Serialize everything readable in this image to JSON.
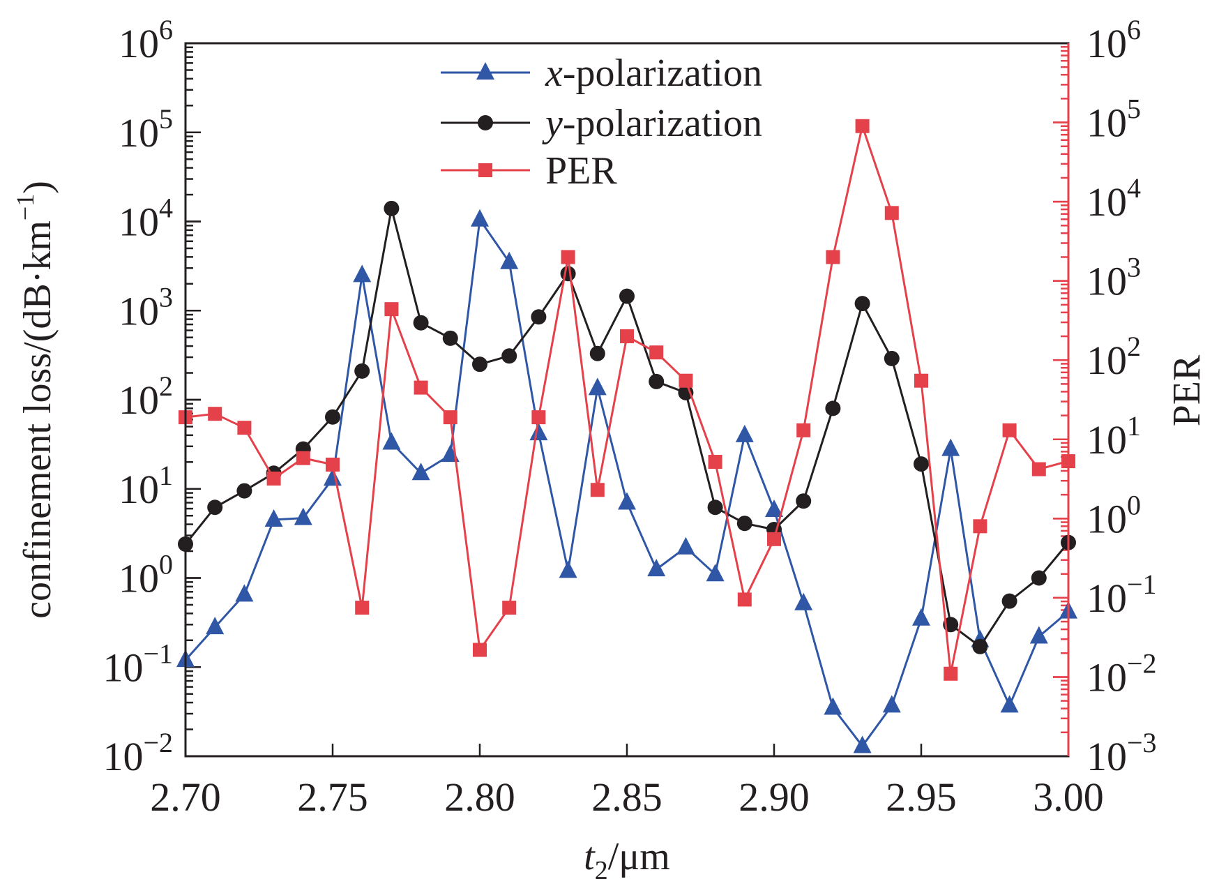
{
  "chart_data": {
    "type": "line",
    "x": [
      2.7,
      2.71,
      2.72,
      2.73,
      2.74,
      2.75,
      2.76,
      2.77,
      2.78,
      2.79,
      2.8,
      2.81,
      2.82,
      2.83,
      2.84,
      2.85,
      2.86,
      2.87,
      2.88,
      2.89,
      2.9,
      2.91,
      2.92,
      2.93,
      2.94,
      2.95,
      2.96,
      2.97,
      2.98,
      2.99,
      3.0
    ],
    "xlim": [
      2.7,
      3.0
    ],
    "x_ticks": [
      "2.70",
      "2.75",
      "2.80",
      "2.85",
      "2.90",
      "2.95",
      "3.00"
    ],
    "x_label": {
      "base": "t",
      "subscript": "2",
      "suffix": "/μm"
    },
    "y_left": {
      "label": "confinement loss/(dB·km",
      "label_superscript": "−1",
      "label_suffix": ")",
      "scale": "log",
      "lim": [
        0.01,
        1000000
      ],
      "ticks": [
        {
          "base": "10",
          "exp": "−2"
        },
        {
          "base": "10",
          "exp": "−1"
        },
        {
          "base": "10",
          "exp": "0"
        },
        {
          "base": "10",
          "exp": "1"
        },
        {
          "base": "10",
          "exp": "2"
        },
        {
          "base": "10",
          "exp": "3"
        },
        {
          "base": "10",
          "exp": "4"
        },
        {
          "base": "10",
          "exp": "5"
        },
        {
          "base": "10",
          "exp": "6"
        }
      ]
    },
    "y_right": {
      "label": "PER",
      "scale": "log",
      "lim": [
        0.001,
        1000000
      ],
      "color": "#e4414b",
      "ticks": [
        {
          "base": "10",
          "exp": "−3"
        },
        {
          "base": "10",
          "exp": "−2"
        },
        {
          "base": "10",
          "exp": "−1"
        },
        {
          "base": "10",
          "exp": "0"
        },
        {
          "base": "10",
          "exp": "1"
        },
        {
          "base": "10",
          "exp": "2"
        },
        {
          "base": "10",
          "exp": "3"
        },
        {
          "base": "10",
          "exp": "4"
        },
        {
          "base": "10",
          "exp": "5"
        },
        {
          "base": "10",
          "exp": "6"
        }
      ]
    },
    "series": [
      {
        "name": "x-polarization",
        "name_italic": "x",
        "name_rest": "-polarization",
        "axis": "left",
        "color": "#2f57a6",
        "marker": "triangle",
        "values": [
          0.12,
          0.28,
          0.65,
          4.5,
          4.7,
          13,
          2500,
          33,
          15,
          24,
          10500,
          3500,
          42,
          1.2,
          135,
          7,
          1.25,
          2.2,
          1.1,
          40,
          5.8,
          0.52,
          0.035,
          0.013,
          0.037,
          0.35,
          28,
          0.2,
          0.037,
          0.22,
          0.42
        ]
      },
      {
        "name": "y-polarization",
        "name_italic": "y",
        "name_rest": "-polarization",
        "axis": "left",
        "color": "#231f20",
        "marker": "circle",
        "values": [
          2.4,
          6.2,
          9.5,
          15,
          28,
          64,
          210,
          14000,
          730,
          490,
          250,
          310,
          850,
          2600,
          330,
          1450,
          160,
          120,
          6.2,
          4.1,
          3.5,
          7.3,
          80,
          1200,
          290,
          19,
          0.3,
          0.17,
          0.55,
          1.0,
          2.5
        ]
      },
      {
        "name": "PER",
        "name_italic": "",
        "name_rest": "PER",
        "axis": "right",
        "color": "#e4414b",
        "marker": "square",
        "values": [
          19,
          21,
          14,
          3.2,
          5.8,
          4.8,
          0.075,
          440,
          45,
          19,
          0.022,
          0.075,
          19,
          2000,
          2.3,
          200,
          125,
          55,
          5.2,
          0.095,
          0.55,
          13,
          2000,
          90000,
          7200,
          55,
          0.011,
          0.8,
          13,
          4.2,
          5.3
        ]
      }
    ],
    "legend": {
      "position": "top-center"
    }
  }
}
